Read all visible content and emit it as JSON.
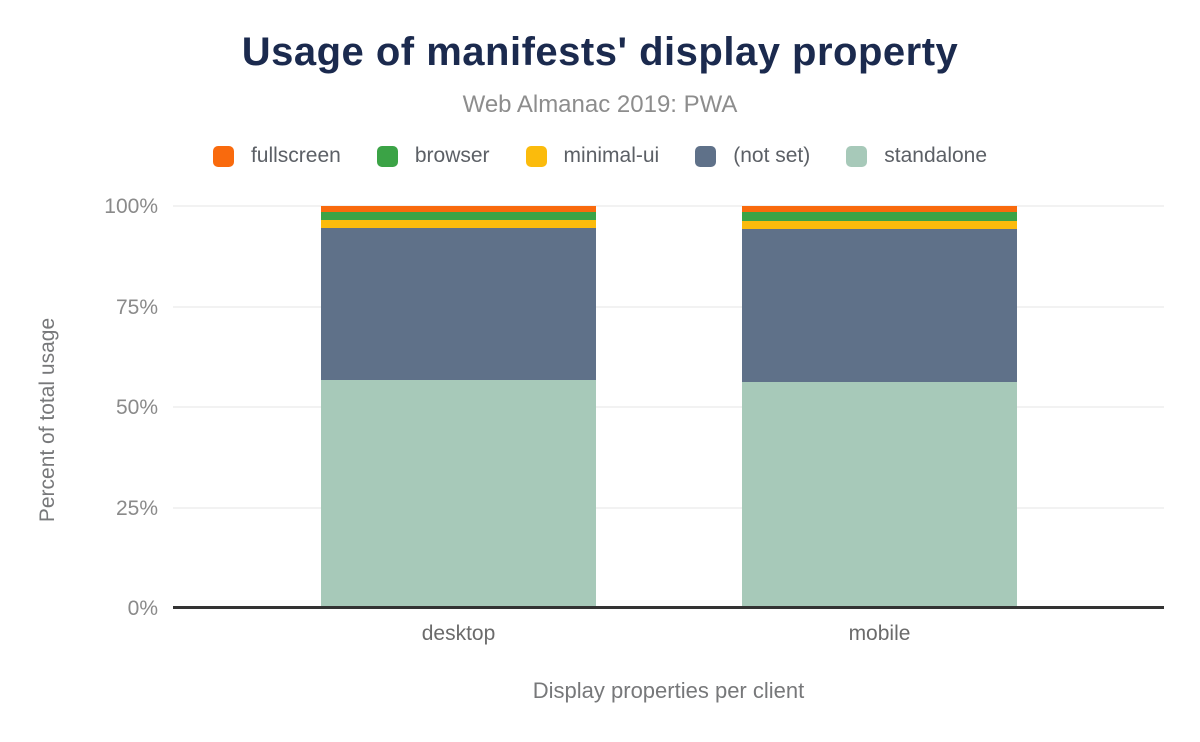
{
  "title": "Usage of manifests' display property",
  "subtitle": "Web Almanac 2019: PWA",
  "chart_data": {
    "type": "bar",
    "stacked": true,
    "title": "Usage of manifests' display property",
    "subtitle": "Web Almanac 2019: PWA",
    "xlabel": "Display properties per client",
    "ylabel": "Percent of total usage",
    "categories": [
      "desktop",
      "mobile"
    ],
    "series": [
      {
        "name": "fullscreen",
        "color": "#F96A0D",
        "values": [
          1.5,
          1.5
        ]
      },
      {
        "name": "browser",
        "color": "#3BA346",
        "values": [
          2.0,
          2.2
        ]
      },
      {
        "name": "minimal-ui",
        "color": "#FBBB0C",
        "values": [
          2.0,
          2.0
        ]
      },
      {
        "name": "(not set)",
        "color": "#5F7189",
        "values": [
          37.7,
          38.0
        ]
      },
      {
        "name": "standalone",
        "color": "#A7C9B9",
        "values": [
          56.8,
          56.3
        ]
      }
    ],
    "ylim": [
      0,
      100
    ],
    "yticks": [
      "0%",
      "25%",
      "50%",
      "75%",
      "100%"
    ],
    "grid": true,
    "legend_position": "top",
    "colors": {
      "title": "#1B2A4E",
      "axis_line": "#333333",
      "gridline": "#F2F2F2"
    }
  }
}
